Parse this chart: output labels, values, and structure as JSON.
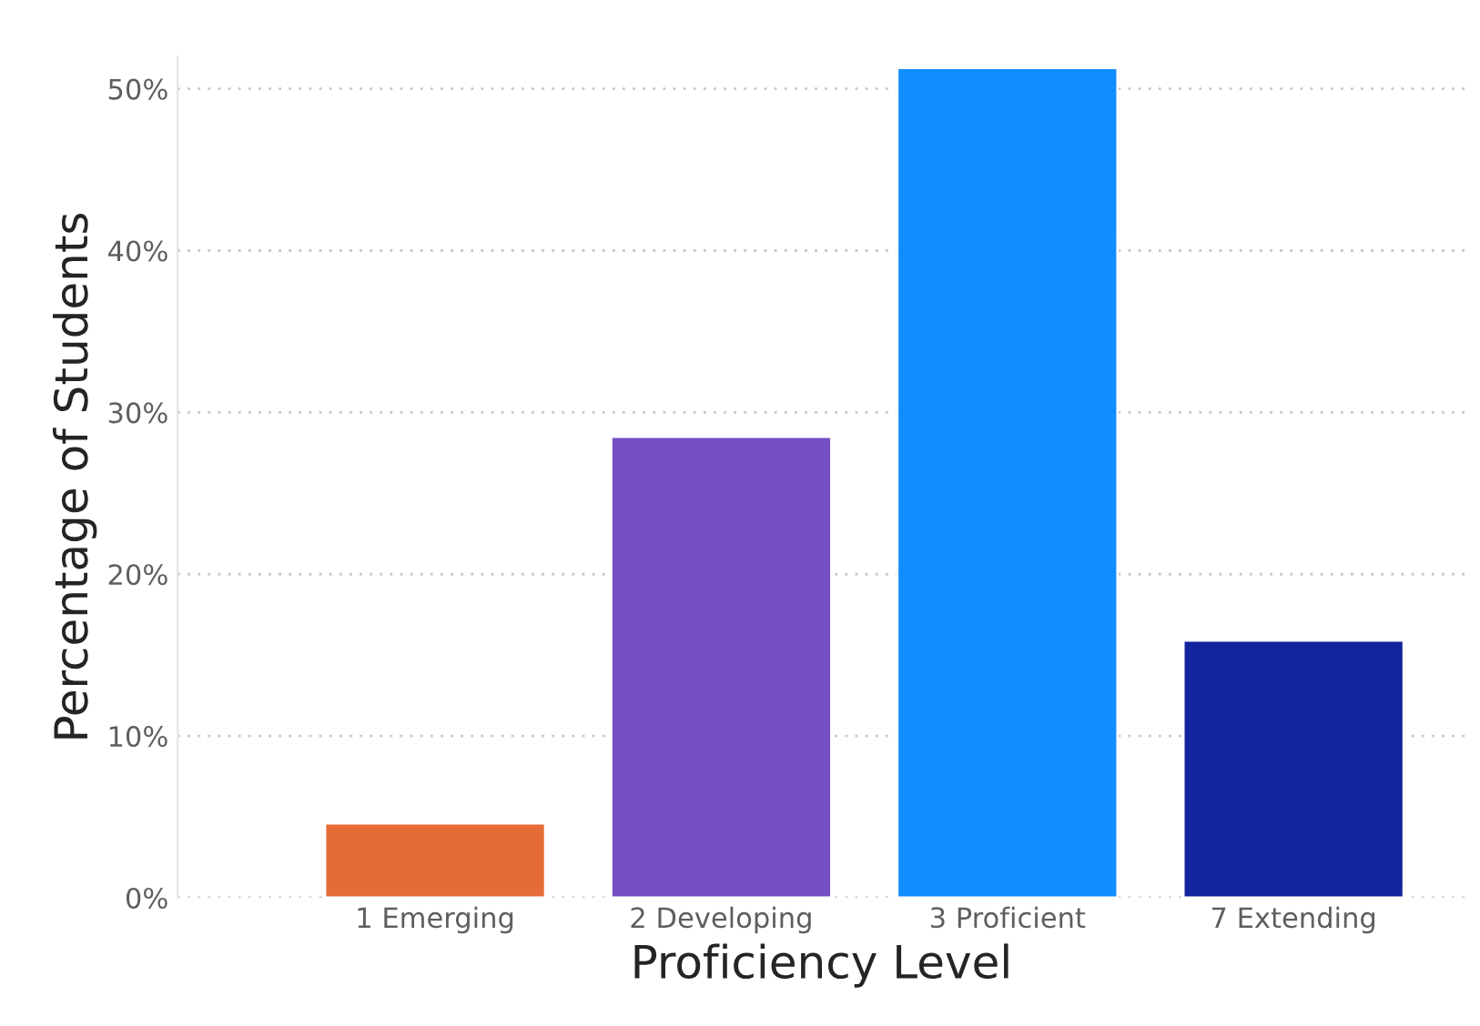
{
  "chart_data": {
    "type": "bar",
    "xlabel": "Proficiency Level",
    "ylabel": "Percentage of Students",
    "categories": [
      "1 Emerging",
      "2 Developing",
      "3 Proficient",
      "7 Extending"
    ],
    "values": [
      4.6,
      28.5,
      51.3,
      15.9
    ],
    "colors": [
      "#e66c37",
      "#744ec2",
      "#118dff",
      "#12239e"
    ],
    "ylim": [
      0,
      52
    ],
    "yticks": [
      {
        "value": 0,
        "label": "0%"
      },
      {
        "value": 10,
        "label": "10%"
      },
      {
        "value": 20,
        "label": "20%"
      },
      {
        "value": 30,
        "label": "30%"
      },
      {
        "value": 40,
        "label": "40%"
      },
      {
        "value": 50,
        "label": "50%"
      }
    ],
    "grid": "y"
  }
}
